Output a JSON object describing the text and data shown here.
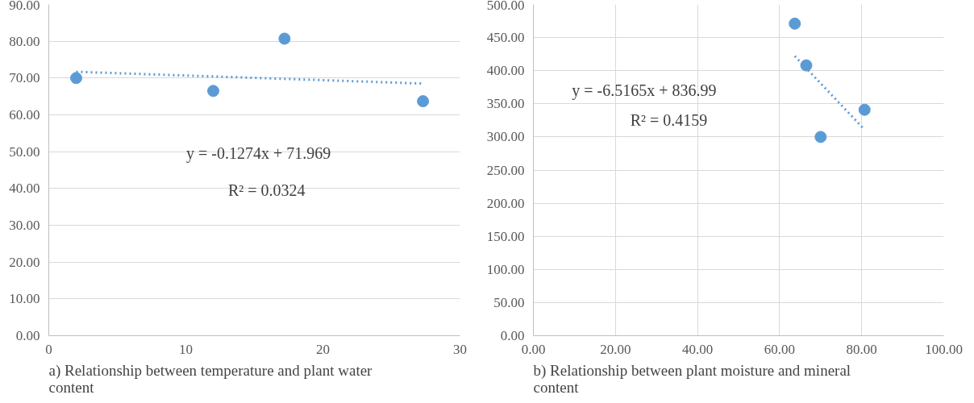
{
  "chart_data": [
    {
      "type": "scatter",
      "xlim": [
        0,
        30
      ],
      "xticks": [
        0,
        10,
        20,
        30
      ],
      "ylim": [
        0,
        90
      ],
      "yticks": [
        {
          "value": 0,
          "label": "0.00"
        },
        {
          "value": 10,
          "label": "10.00"
        },
        {
          "value": 20,
          "label": "20.00"
        },
        {
          "value": 30,
          "label": "30.00"
        },
        {
          "value": 40,
          "label": "40.00"
        },
        {
          "value": 50,
          "label": "50.00"
        },
        {
          "value": 60,
          "label": "60.00"
        },
        {
          "value": 70,
          "label": "70.00"
        },
        {
          "value": 80,
          "label": "80.00"
        },
        {
          "value": 90,
          "label": "90.00"
        }
      ],
      "grid": "y",
      "marker": "circle",
      "series": [
        {
          "color": "#5b9bd5",
          "x": [
            2,
            12,
            17.2,
            27.3
          ],
          "values": [
            70,
            66.5,
            80.7,
            63.7
          ]
        },
        {
          "type": "line",
          "color": "#5b9bd5",
          "line_style": "dotted",
          "marker": "none",
          "x": [
            2,
            27.3
          ],
          "values": [
            71.7,
            68.5
          ]
        }
      ],
      "annotations": [
        "y = -0.1274x + 71.969",
        "R² = 0.0324",
        "a)    Relationship between temperature and plant water content"
      ]
    },
    {
      "type": "scatter",
      "xlim": [
        0,
        100
      ],
      "xticks": [
        {
          "value": 0,
          "label": "0.00"
        },
        {
          "value": 20,
          "label": "20.00"
        },
        {
          "value": 40,
          "label": "40.00"
        },
        {
          "value": 60,
          "label": "60.00"
        },
        {
          "value": 80,
          "label": "80.00"
        },
        {
          "value": 100,
          "label": "100.00"
        }
      ],
      "ylim": [
        0,
        500
      ],
      "yticks": [
        {
          "value": 0,
          "label": "0.00"
        },
        {
          "value": 50,
          "label": "50.00"
        },
        {
          "value": 100,
          "label": "100.00"
        },
        {
          "value": 150,
          "label": "150.00"
        },
        {
          "value": 200,
          "label": "200.00"
        },
        {
          "value": 250,
          "label": "250.00"
        },
        {
          "value": 300,
          "label": "300.00"
        },
        {
          "value": 350,
          "label": "350.00"
        },
        {
          "value": 400,
          "label": "400.00"
        },
        {
          "value": 450,
          "label": "450.00"
        },
        {
          "value": 500,
          "label": "500.00"
        }
      ],
      "grid": true,
      "marker": "circle",
      "series": [
        {
          "color": "#5b9bd5",
          "x": [
            63.7,
            66.5,
            70,
            80.7
          ],
          "values": [
            471,
            408,
            300,
            341
          ]
        },
        {
          "type": "line",
          "color": "#5b9bd5",
          "line_style": "dotted",
          "marker": "none",
          "x": [
            63.7,
            80.7
          ],
          "values": [
            422,
            311
          ]
        }
      ],
      "annotations": [
        "y = -6.5165x + 836.99",
        "R² = 0.4159",
        "b)    Relationship between plant moisture and mineral content"
      ]
    }
  ]
}
